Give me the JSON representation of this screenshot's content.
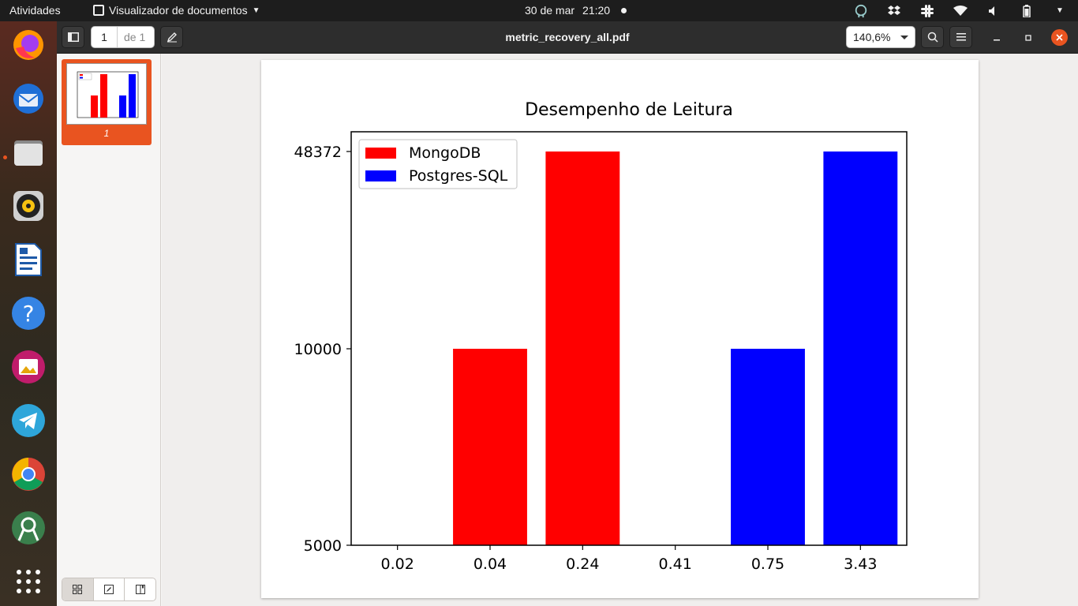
{
  "topbar": {
    "activities": "Atividades",
    "app_name": "Visualizador de documentos",
    "date": "30 de mar",
    "time": "21:20"
  },
  "dock": {
    "items": [
      {
        "name": "firefox-icon"
      },
      {
        "name": "thunderbird-icon"
      },
      {
        "name": "files-icon"
      },
      {
        "name": "rhythmbox-icon"
      },
      {
        "name": "writer-icon"
      },
      {
        "name": "help-icon"
      },
      {
        "name": "image-viewer-icon"
      },
      {
        "name": "telegram-icon"
      },
      {
        "name": "chrome-icon"
      },
      {
        "name": "android-studio-icon"
      },
      {
        "name": "app-grid-icon"
      }
    ]
  },
  "header": {
    "page_current": "1",
    "page_of": "de 1",
    "title": "metric_recovery_all.pdf",
    "zoom": "140,6%"
  },
  "sidebar": {
    "thumb_label": "1"
  },
  "colors": {
    "accent": "#e95420",
    "mongo": "#ff0000",
    "postgres": "#0000ff"
  },
  "chart_data": {
    "type": "bar",
    "title": "Desempenho de Leitura",
    "categories": [
      "0.02",
      "0.04",
      "0.24",
      "0.41",
      "0.75",
      "3.43"
    ],
    "yticks": [
      "5000",
      "10000",
      "48372"
    ],
    "series": [
      {
        "name": "MongoDB",
        "color": "#ff0000",
        "values": [
          null,
          10000,
          48372,
          null,
          null,
          null
        ]
      },
      {
        "name": "Postgres-SQL",
        "color": "#0000ff",
        "values": [
          null,
          null,
          null,
          null,
          10000,
          48372
        ]
      }
    ],
    "legend": "top-left",
    "grid": false
  }
}
